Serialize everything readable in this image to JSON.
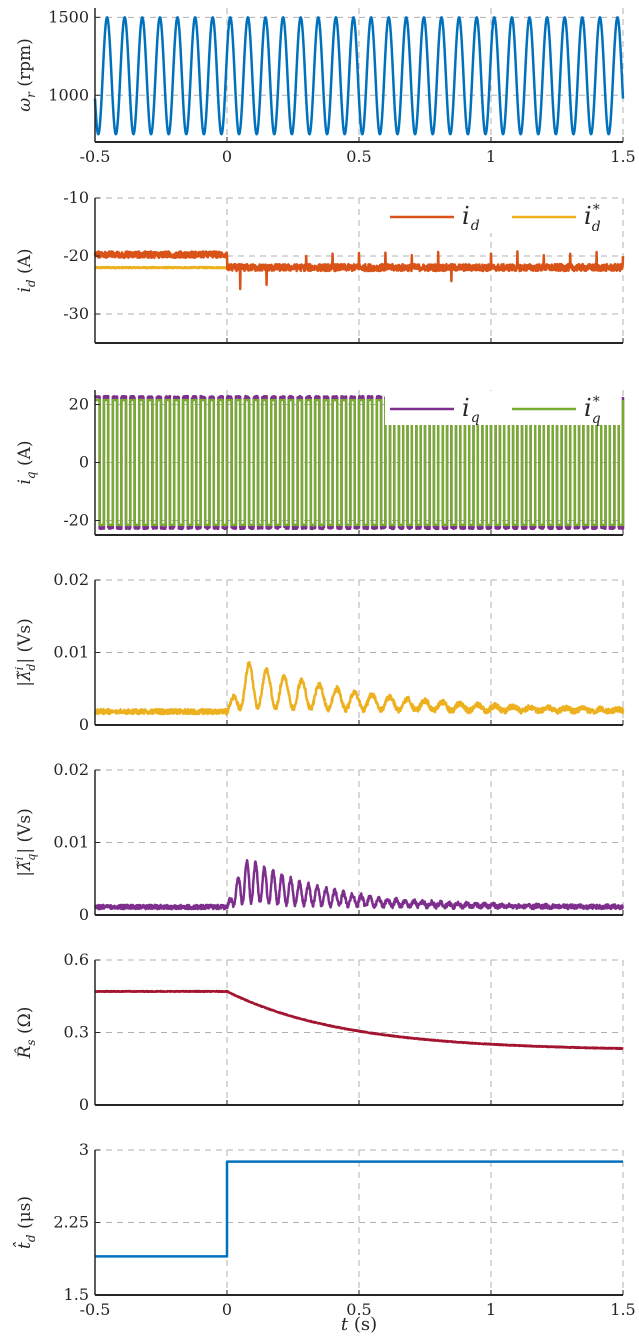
{
  "colors": {
    "blue": "#0072BD",
    "orange": "#D95319",
    "yellow": "#EDB120",
    "purple": "#7E2F8E",
    "green": "#77AC30",
    "dark_red": "#A2142F",
    "grid": "#b0b0b0",
    "axis": "#262626"
  },
  "x_axis": {
    "label_var": "t",
    "label_unit": " (s)",
    "lim": [
      -0.5,
      1.5
    ],
    "ticks": [
      -0.5,
      0,
      0.5,
      1,
      1.5
    ],
    "tick_labels": [
      "-0.5",
      "0",
      "0.5",
      "1",
      "1.5"
    ]
  },
  "chart_data": [
    {
      "id": "omega",
      "type": "line",
      "ylabel_sym": "ω",
      "ylabel_sub": "r",
      "ylabel_unit": " (rpm)",
      "ylim": [
        700,
        1560
      ],
      "yticks": [
        1000,
        1500
      ],
      "ytick_labels": [
        "1000",
        "1500"
      ],
      "grid": true,
      "show_xtick_labels": true,
      "legend": [],
      "series": [
        {
          "color": "blue",
          "kind": "sine",
          "mean": 1125,
          "amp": 375,
          "freq_hz": 15,
          "phase": 0.4,
          "noise": 0
        }
      ]
    },
    {
      "id": "id",
      "type": "line",
      "ylabel_sym": "i",
      "ylabel_sub": "d",
      "ylabel_unit": " (A)",
      "ylim": [
        -35,
        -10
      ],
      "yticks": [
        -30,
        -20,
        -10
      ],
      "ytick_labels": [
        "-30",
        "-20",
        "-10"
      ],
      "grid": true,
      "show_xtick_labels": false,
      "legend": [
        {
          "color": "orange",
          "sym": "i",
          "sub": "d",
          "sup": ""
        },
        {
          "color": "yellow",
          "sym": "i",
          "sub": "d",
          "sup": "*"
        }
      ],
      "series": [
        {
          "color": "yellow",
          "kind": "flat",
          "value": -22,
          "noise": 0.1
        },
        {
          "color": "orange",
          "kind": "spiky",
          "value": -22,
          "noise": 0.6,
          "spike_up": 2.8,
          "spike_down": -4.0,
          "spike_freq_hz": 30
        }
      ]
    },
    {
      "id": "iq",
      "type": "line",
      "ylabel_sym": "i",
      "ylabel_sub": "q",
      "ylabel_unit": " (A)",
      "ylim": [
        -25,
        25
      ],
      "yticks": [
        -20,
        0,
        20
      ],
      "ytick_labels": [
        "-20",
        "0",
        "20"
      ],
      "grid": true,
      "show_xtick_labels": false,
      "legend": [
        {
          "color": "purple",
          "sym": "i",
          "sub": "q",
          "sup": ""
        },
        {
          "color": "green",
          "sym": "i",
          "sub": "q",
          "sup": "*"
        }
      ],
      "series": [
        {
          "color": "purple",
          "kind": "square",
          "amp": 22.5,
          "freq_hz": 30,
          "noise": 0.4
        },
        {
          "color": "green",
          "kind": "square",
          "amp": 21.5,
          "freq_hz": 30,
          "noise": 0
        }
      ]
    },
    {
      "id": "lambda_d",
      "type": "line",
      "ylabel_sym": "|λ̃",
      "ylabel_sub": "d",
      "ylabel_sup": "i",
      "ylabel_close": "|",
      "ylabel_unit": " (Vs)",
      "ylim": [
        0,
        0.02
      ],
      "yticks": [
        0,
        0.01,
        0.02
      ],
      "ytick_labels": [
        "0",
        "0.01",
        "0.02"
      ],
      "grid": true,
      "show_xtick_labels": false,
      "legend": [],
      "series": [
        {
          "color": "yellow",
          "kind": "transient",
          "base": 0.0015,
          "peak": 0.0095,
          "t_start": 0.0,
          "decay": 0.45,
          "osc_hz": 15,
          "noise": 0.0007
        }
      ]
    },
    {
      "id": "lambda_q",
      "type": "line",
      "ylabel_sym": "|λ̃",
      "ylabel_sub": "q",
      "ylabel_sup": "i",
      "ylabel_close": "|",
      "ylabel_unit": " (Vs)",
      "ylim": [
        0,
        0.02
      ],
      "yticks": [
        0,
        0.01,
        0.02
      ],
      "ytick_labels": [
        "0",
        "0.01",
        "0.02"
      ],
      "grid": true,
      "show_xtick_labels": false,
      "legend": [],
      "series": [
        {
          "color": "purple",
          "kind": "transient",
          "base": 0.0008,
          "peak": 0.0095,
          "t_start": 0.0,
          "decay": 0.3,
          "osc_hz": 30,
          "noise": 0.0006
        }
      ]
    },
    {
      "id": "Rs",
      "type": "line",
      "ylabel_sym": "R̂",
      "ylabel_sub": "s",
      "ylabel_unit": " (Ω)",
      "ylim": [
        0,
        0.6
      ],
      "yticks": [
        0,
        0.3,
        0.6
      ],
      "ytick_labels": [
        "0",
        "0.3",
        "0.6"
      ],
      "grid": true,
      "show_xtick_labels": false,
      "legend": [],
      "series": [
        {
          "color": "dark_red",
          "kind": "expdecay",
          "before": 0.47,
          "after": 0.225,
          "t_start": 0.0,
          "tau": 0.45,
          "noise": 0.0015
        }
      ]
    },
    {
      "id": "td",
      "type": "line",
      "ylabel_sym": "t̂",
      "ylabel_sub": "d",
      "ylabel_unit": " (μs)",
      "ylim": [
        1.5,
        3
      ],
      "yticks": [
        1.5,
        2.25,
        3
      ],
      "ytick_labels": [
        "1.5",
        "2.25",
        "3"
      ],
      "grid": true,
      "show_xtick_labels": true,
      "legend": [],
      "series": [
        {
          "color": "blue",
          "kind": "step",
          "before": 1.9,
          "after": 2.88,
          "t_step": 0.0,
          "noise": 0
        }
      ]
    }
  ]
}
